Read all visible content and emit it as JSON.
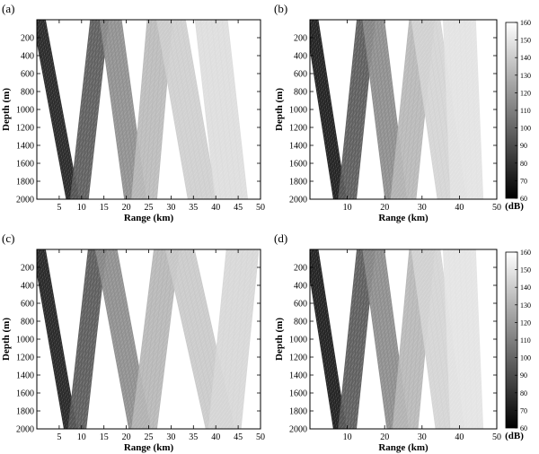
{
  "chart_data": [
    {
      "type": "heatmap",
      "panel_label": "(a)",
      "xlabel": "Range (km)",
      "ylabel": "Depth (m)",
      "xlim": [
        0,
        50
      ],
      "ylim": [
        2000,
        0
      ],
      "xticks": [
        5,
        10,
        15,
        20,
        25,
        30,
        35,
        40,
        45,
        50
      ],
      "yticks": [
        200,
        400,
        600,
        800,
        1000,
        1200,
        1400,
        1600,
        1800,
        2000
      ],
      "colormap": "gray",
      "colorbar": false,
      "beams": [
        {
          "x0": 0.5,
          "x1": 8.0,
          "shade": "#242424"
        },
        {
          "x0": 14.0,
          "x1": 9.5,
          "shade": "#5a5a5a"
        },
        {
          "x0": 16.5,
          "x1": 22.0,
          "shade": "#8c8c8c"
        },
        {
          "x0": 27.5,
          "x1": 24.0,
          "shade": "#b8b8b8"
        },
        {
          "x0": 30.0,
          "x1": 37.0,
          "shade": "#cdcdcd"
        },
        {
          "x0": 39.0,
          "x1": 43.5,
          "shade": "#dcdcdc"
        }
      ]
    },
    {
      "type": "heatmap",
      "panel_label": "(b)",
      "xlabel": "Range (km)",
      "ylabel": "Depth (m)",
      "xlim": [
        0,
        50
      ],
      "ylim": [
        2000,
        0
      ],
      "xticks": [
        10,
        20,
        30,
        40,
        50
      ],
      "yticks": [
        200,
        400,
        600,
        800,
        1000,
        1200,
        1400,
        1600,
        1800,
        2000
      ],
      "colormap": "gray",
      "colorbar": true,
      "colorbar_ticks": [
        60,
        70,
        80,
        90,
        100,
        110,
        120,
        130,
        140,
        150,
        160
      ],
      "colorbar_unit": "(dB)",
      "clim": [
        60,
        160
      ],
      "beams": [
        {
          "x0": 0.5,
          "x1": 8.0,
          "shade": "#1c1c1c"
        },
        {
          "x0": 15.0,
          "x1": 10.0,
          "shade": "#595959"
        },
        {
          "x0": 17.0,
          "x1": 23.0,
          "shade": "#8a8a8a"
        },
        {
          "x0": 30.0,
          "x1": 25.0,
          "shade": "#b5b5b5"
        },
        {
          "x0": 31.0,
          "x1": 38.0,
          "shade": "#d2d2d2"
        },
        {
          "x0": 40.0,
          "x1": 42.0,
          "shade": "#e2e2e2"
        }
      ]
    },
    {
      "type": "heatmap",
      "panel_label": "(c)",
      "xlabel": "Range (km)",
      "ylabel": "Depth (m)",
      "xlim": [
        0,
        50
      ],
      "ylim": [
        2000,
        0
      ],
      "xticks": [
        5,
        10,
        15,
        20,
        25,
        30,
        35,
        40,
        45,
        50
      ],
      "yticks": [
        200,
        400,
        600,
        800,
        1000,
        1200,
        1400,
        1600,
        1800,
        2000
      ],
      "colormap": "gray",
      "colorbar": false,
      "beams": [
        {
          "x0": 0.5,
          "x1": 7.5,
          "shade": "#222222"
        },
        {
          "x0": 13.5,
          "x1": 9.0,
          "shade": "#585858"
        },
        {
          "x0": 15.5,
          "x1": 23.0,
          "shade": "#8b8b8b"
        },
        {
          "x0": 29.0,
          "x1": 24.0,
          "shade": "#b4b4b4"
        },
        {
          "x0": 32.0,
          "x1": 41.0,
          "shade": "#c8c8c8"
        },
        {
          "x0": 46.0,
          "x1": 42.0,
          "shade": "#d6d6d6"
        }
      ]
    },
    {
      "type": "heatmap",
      "panel_label": "(d)",
      "xlabel": "Range (km)",
      "ylabel": "Depth (m)",
      "xlim": [
        0,
        50
      ],
      "ylim": [
        2000,
        0
      ],
      "xticks": [
        10,
        20,
        30,
        40,
        50
      ],
      "yticks": [
        200,
        400,
        600,
        800,
        1000,
        1200,
        1400,
        1600,
        1800,
        2000
      ],
      "colormap": "gray",
      "colorbar": true,
      "colorbar_ticks": [
        60,
        70,
        80,
        90,
        100,
        110,
        120,
        130,
        140,
        150,
        160
      ],
      "colorbar_unit": "(dB)",
      "clim": [
        60,
        160
      ],
      "beams": [
        {
          "x0": 0.5,
          "x1": 8.0,
          "shade": "#1c1c1c"
        },
        {
          "x0": 15.0,
          "x1": 10.0,
          "shade": "#595959"
        },
        {
          "x0": 17.0,
          "x1": 23.5,
          "shade": "#8a8a8a"
        },
        {
          "x0": 30.0,
          "x1": 25.5,
          "shade": "#b5b5b5"
        },
        {
          "x0": 31.0,
          "x1": 37.5,
          "shade": "#d3d3d3"
        },
        {
          "x0": 40.0,
          "x1": 42.0,
          "shade": "#e3e3e3"
        }
      ]
    }
  ]
}
